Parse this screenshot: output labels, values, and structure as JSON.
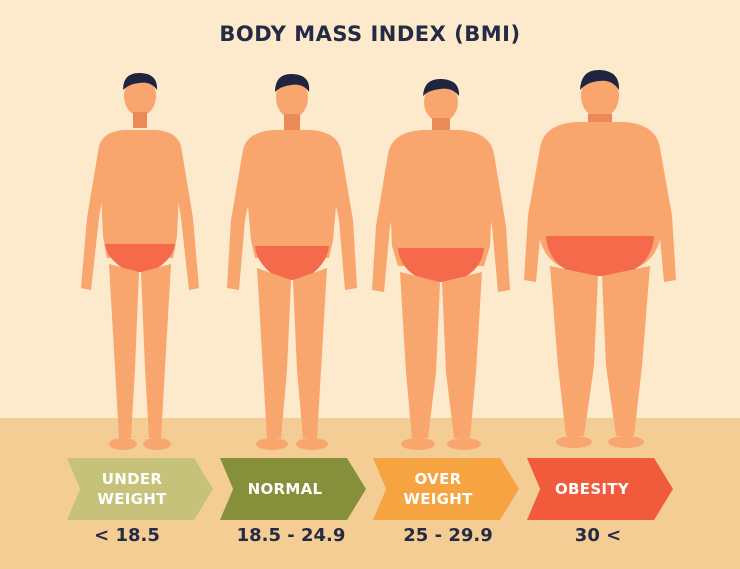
{
  "title": "BODY MASS INDEX (BMI)",
  "categories": [
    {
      "label_line1": "UNDER",
      "label_line2": "WEIGHT",
      "range": "< 18.5",
      "color": "#c6c27a"
    },
    {
      "label_line1": "NORMAL",
      "label_line2": "",
      "range": "18.5 - 24.9",
      "color": "#86903a"
    },
    {
      "label_line1": "OVER",
      "label_line2": "WEIGHT",
      "range": "25 - 29.9",
      "color": "#f6a341"
    },
    {
      "label_line1": "OBESITY",
      "label_line2": "",
      "range": "30 <",
      "color": "#f25a3c"
    }
  ],
  "colors": {
    "background": "#fde9cc",
    "floor": "#f3cd93",
    "skin": "#f8a56e",
    "skin_shade": "#ea8a57",
    "briefs": "#f46a4a",
    "hair": "#1f2540",
    "text": "#252a45"
  }
}
